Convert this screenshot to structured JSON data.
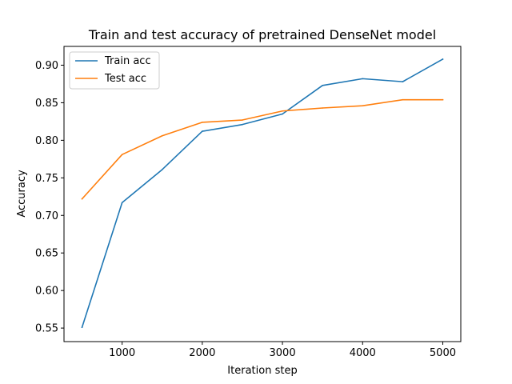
{
  "chart_data": {
    "type": "line",
    "title": "Train and test accuracy of pretrained DenseNet model",
    "xlabel": "Iteration step",
    "ylabel": "Accuracy",
    "x": [
      500,
      1000,
      1500,
      2000,
      2500,
      3000,
      3500,
      4000,
      4500,
      5000
    ],
    "xlim": [
      275,
      5225
    ],
    "ylim": [
      0.532,
      0.925
    ],
    "xticks": [
      1000,
      2000,
      3000,
      4000,
      5000
    ],
    "xtick_labels": [
      "1000",
      "2000",
      "3000",
      "4000",
      "5000"
    ],
    "yticks": [
      0.55,
      0.6,
      0.65,
      0.7,
      0.75,
      0.8,
      0.85,
      0.9
    ],
    "ytick_labels": [
      "0.55",
      "0.60",
      "0.65",
      "0.70",
      "0.75",
      "0.80",
      "0.85",
      "0.90"
    ],
    "grid": false,
    "legend_position": "upper-left",
    "series": [
      {
        "name": "Train acc",
        "color": "#1f77b4",
        "values": [
          0.551,
          0.717,
          0.761,
          0.812,
          0.821,
          0.835,
          0.873,
          0.882,
          0.878,
          0.908
        ]
      },
      {
        "name": "Test acc",
        "color": "#ff7f0e",
        "values": [
          0.722,
          0.781,
          0.806,
          0.824,
          0.827,
          0.839,
          0.843,
          0.846,
          0.854,
          0.854
        ]
      }
    ]
  }
}
